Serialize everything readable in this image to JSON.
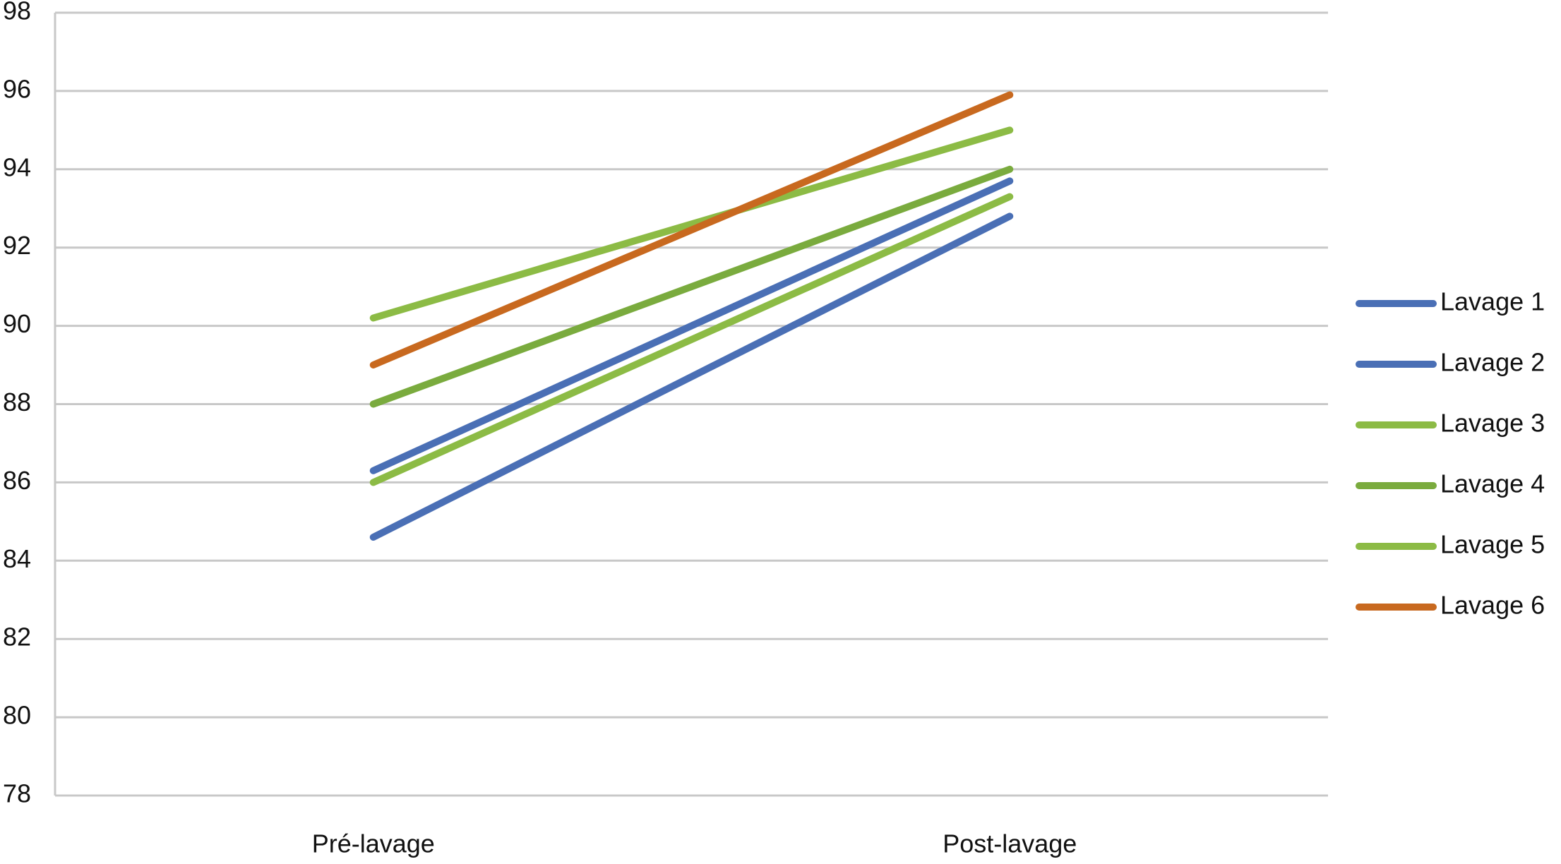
{
  "chart_data": {
    "type": "line",
    "categories": [
      "Pré-lavage",
      "Post-lavage"
    ],
    "series": [
      {
        "name": "Lavage 1",
        "color": "#4a6fb5",
        "values": [
          84.6,
          92.8
        ]
      },
      {
        "name": "Lavage 2",
        "color": "#4a6fb5",
        "values": [
          86.3,
          93.7
        ]
      },
      {
        "name": "Lavage 3",
        "color": "#8cbb45",
        "values": [
          90.2,
          95.0
        ]
      },
      {
        "name": "Lavage 4",
        "color": "#7aab3e",
        "values": [
          88.0,
          94.0
        ]
      },
      {
        "name": "Lavage 5",
        "color": "#8cbb45",
        "values": [
          86.0,
          93.3
        ]
      },
      {
        "name": "Lavage 6",
        "color": "#c8691f",
        "values": [
          89.0,
          95.9
        ]
      }
    ],
    "ylim": [
      78,
      98
    ],
    "yticks": [
      78,
      80,
      82,
      84,
      86,
      88,
      90,
      92,
      94,
      96,
      98
    ],
    "grid": true,
    "legend": "right"
  }
}
